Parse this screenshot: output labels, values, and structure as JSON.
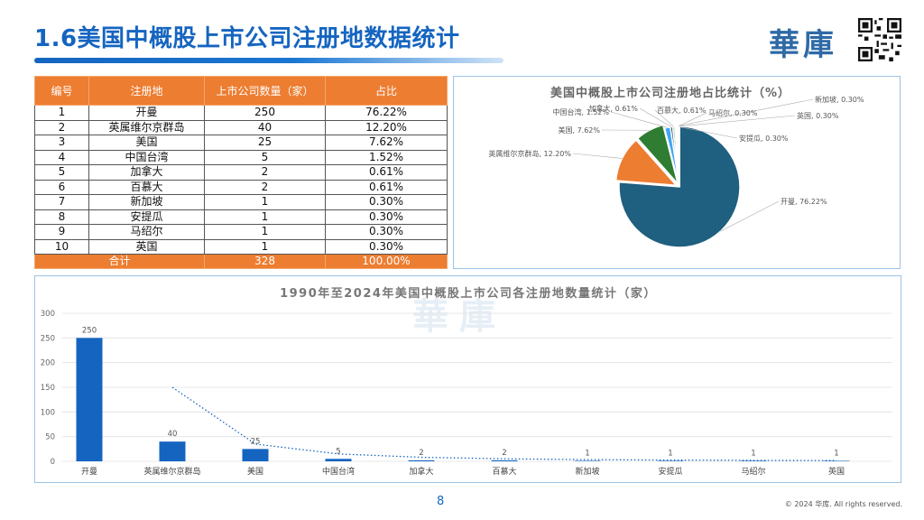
{
  "page": {
    "title": "1.6美国中概股上市公司注册地数据统计",
    "brand": "華庫",
    "page_number": "8",
    "copyright": "© 2024 华库. All rights reserved."
  },
  "table": {
    "headers": [
      "编号",
      "注册地",
      "上市公司数量（家）",
      "占比"
    ],
    "rows": [
      [
        "1",
        "开曼",
        "250",
        "76.22%"
      ],
      [
        "2",
        "英属维尔京群岛",
        "40",
        "12.20%"
      ],
      [
        "3",
        "美国",
        "25",
        "7.62%"
      ],
      [
        "4",
        "中国台湾",
        "5",
        "1.52%"
      ],
      [
        "5",
        "加拿大",
        "2",
        "0.61%"
      ],
      [
        "6",
        "百慕大",
        "2",
        "0.61%"
      ],
      [
        "7",
        "新加坡",
        "1",
        "0.30%"
      ],
      [
        "8",
        "安提瓜",
        "1",
        "0.30%"
      ],
      [
        "9",
        "马绍尔",
        "1",
        "0.30%"
      ],
      [
        "10",
        "英国",
        "1",
        "0.30%"
      ]
    ],
    "total": [
      "合计",
      "328",
      "100.00%"
    ]
  },
  "chart_data": [
    {
      "type": "pie",
      "title": "美国中概股上市公司注册地占比统计（%）",
      "slices": [
        {
          "label": "开曼, 76.22%",
          "value": 76.22,
          "color": "#1f5f7f"
        },
        {
          "label": "英属维尔京群岛, 12.20%",
          "value": 12.2,
          "color": "#ed7d31"
        },
        {
          "label": "美国, 7.62%",
          "value": 7.62,
          "color": "#2e7d32"
        },
        {
          "label": "中国台湾, 1.52%",
          "value": 1.52,
          "color": "#42a5f5"
        },
        {
          "label": "加拿大, 0.61%",
          "value": 0.61,
          "color": "#0b3d66"
        },
        {
          "label": "百慕大, 0.61%",
          "value": 0.61,
          "color": "#a5d6a7"
        },
        {
          "label": "新加坡, 0.30%",
          "value": 0.3,
          "color": "#90a4ae"
        },
        {
          "label": "安提瓜, 0.30%",
          "value": 0.3,
          "color": "#c5e1a5"
        },
        {
          "label": "马绍尔, 0.30%",
          "value": 0.3,
          "color": "#ffcc80"
        },
        {
          "label": "英国, 0.30%",
          "value": 0.3,
          "color": "#bcaaa4"
        }
      ]
    },
    {
      "type": "bar",
      "title": "1990年至2024年美国中概股上市公司各注册地数量统计（家）",
      "categories": [
        "开曼",
        "英属维尔京群岛",
        "美国",
        "中国台湾",
        "加拿大",
        "百慕大",
        "新加坡",
        "安提瓜",
        "马绍尔",
        "英国"
      ],
      "values": [
        250,
        40,
        25,
        5,
        2,
        2,
        1,
        1,
        1,
        1
      ],
      "ylim": [
        0,
        300
      ],
      "yticks": [
        0,
        50,
        100,
        150,
        200,
        250,
        300
      ],
      "bar_color": "#1565c0",
      "trendline": "dotted"
    }
  ]
}
